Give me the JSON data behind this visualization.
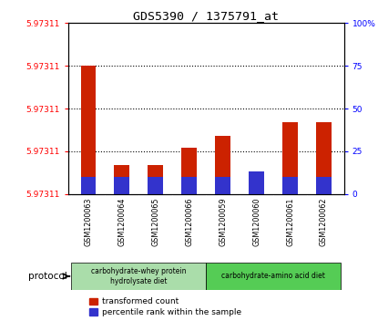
{
  "title": "GDS5390 / 1375791_at",
  "samples": [
    "GSM1200063",
    "GSM1200064",
    "GSM1200065",
    "GSM1200066",
    "GSM1200059",
    "GSM1200060",
    "GSM1200061",
    "GSM1200062"
  ],
  "red_values": [
    75,
    17,
    17,
    27,
    34,
    12,
    42,
    42
  ],
  "blue_values": [
    10,
    10,
    10,
    10,
    10,
    13,
    10,
    10
  ],
  "red_color": "#cc2200",
  "blue_color": "#3333cc",
  "bar_width": 0.45,
  "ytick_labels_left": [
    "5.97311",
    "5.97311",
    "5.97311",
    "5.97311",
    "5.97311"
  ],
  "ytick_positions": [
    0,
    25,
    50,
    75,
    100
  ],
  "ytick_labels_right": [
    "0",
    "25",
    "50",
    "75",
    "100%"
  ],
  "protocol_groups": [
    {
      "label": "carbohydrate-whey protein\nhydrolysate diet",
      "start": 0,
      "end": 4,
      "color": "#aaddaa"
    },
    {
      "label": "carbohydrate-amino acid diet",
      "start": 4,
      "end": 8,
      "color": "#55cc55"
    }
  ],
  "legend_red": "transformed count",
  "legend_blue": "percentile rank within the sample",
  "protocol_label": "protocol",
  "grey_bg": "#cccccc",
  "white_bg": "#ffffff"
}
